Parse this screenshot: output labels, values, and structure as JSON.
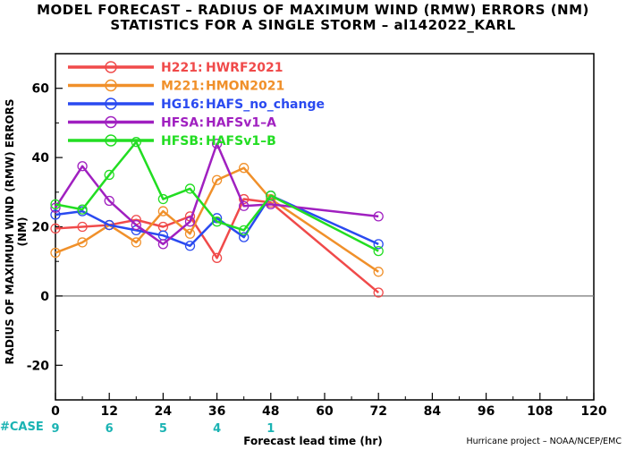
{
  "title_line1": "MODEL FORECAST – RADIUS OF MAXIMUM WIND (RMW) ERRORS (NM)",
  "title_line2": "STATISTICS FOR A SINGLE STORM – al142022_KARL",
  "case_label": "#CASE",
  "credit": "Hurricane project – NOAA/NCEP/EMC",
  "chart_data": {
    "type": "line",
    "xlabel": "Forecast lead time (hr)",
    "ylabel": "RADIUS OF MAXIMUM WIND (RMW) ERRORS (NM)",
    "xlim": [
      0,
      120
    ],
    "ylim": [
      -30,
      70
    ],
    "x_ticks": [
      0,
      12,
      24,
      36,
      48,
      60,
      72,
      84,
      96,
      108,
      120
    ],
    "y_ticks": [
      -20,
      0,
      20,
      40,
      60
    ],
    "zero_line": true,
    "grid": false,
    "legend_position": "top-left",
    "series": [
      {
        "name": "H221:",
        "description": "HWRF2021",
        "color": "#f04a4a",
        "x": [
          0,
          6,
          12,
          18,
          24,
          30,
          36,
          42,
          48,
          72
        ],
        "y": [
          19.5,
          20,
          20.5,
          22,
          20,
          23,
          11,
          28,
          27,
          1
        ]
      },
      {
        "name": "M221:",
        "description": "HMON2021",
        "color": "#f0902a",
        "x": [
          0,
          6,
          12,
          18,
          24,
          30,
          36,
          42,
          48,
          72
        ],
        "y": [
          12.5,
          15.5,
          20.5,
          15.5,
          24.5,
          18,
          33.5,
          37,
          28,
          7
        ]
      },
      {
        "name": "HG16:",
        "description": "HAFS_no_change",
        "color": "#2a4af0",
        "x": [
          0,
          6,
          12,
          18,
          24,
          30,
          36,
          42,
          48,
          72
        ],
        "y": [
          23.5,
          24.5,
          20.5,
          19,
          17.5,
          14.5,
          22.5,
          17,
          29,
          15
        ]
      },
      {
        "name": "HFSA:",
        "description": "HAFSv1–A",
        "color": "#a020c0",
        "x": [
          0,
          6,
          12,
          18,
          24,
          30,
          36,
          42,
          48,
          72
        ],
        "y": [
          25.5,
          37.5,
          27.5,
          20.5,
          15,
          21.5,
          44,
          26,
          26.5,
          23
        ]
      },
      {
        "name": "HFSB:",
        "description": "HAFSv1–B",
        "color": "#22dd22",
        "x": [
          0,
          6,
          12,
          18,
          24,
          30,
          36,
          42,
          48,
          72
        ],
        "y": [
          26.5,
          25,
          35,
          44.5,
          28,
          31,
          21.5,
          19,
          29,
          13
        ]
      }
    ],
    "case_counts": [
      {
        "x": 0,
        "count": "9"
      },
      {
        "x": 12,
        "count": "6"
      },
      {
        "x": 24,
        "count": "5"
      },
      {
        "x": 36,
        "count": "4"
      },
      {
        "x": 48,
        "count": "1"
      }
    ],
    "case_color": "#1ab3b3"
  }
}
